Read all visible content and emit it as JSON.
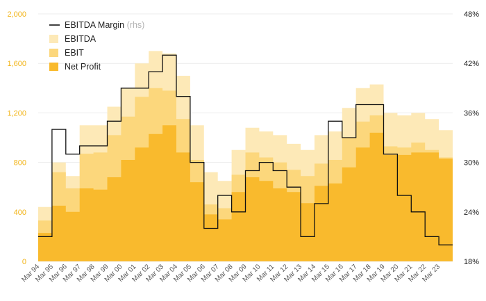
{
  "chart_data": {
    "type": "area",
    "title": "",
    "xlabel": "",
    "ylabel": "",
    "ylim": [
      0,
      2000
    ],
    "y2lim": [
      18,
      48
    ],
    "yticks": [
      "0",
      "400",
      "800",
      "1,200",
      "1,600",
      "2,000"
    ],
    "y2ticks": [
      "18%",
      "24%",
      "30%",
      "36%",
      "42%",
      "48%"
    ],
    "grid": true,
    "legend_position": "top-left",
    "colors": {
      "ebitda": "#fde9b7",
      "ebit": "#fcd77c",
      "net_profit": "#f9ba2d",
      "margin": "#111111",
      "left_axis": "#f2b417",
      "right_axis": "#222222"
    },
    "legend": {
      "margin_label": "EBITDA Margin",
      "margin_suffix": "(rhs)",
      "ebitda_label": "EBITDA",
      "ebit_label": "EBIT",
      "net_profit_label": "Net Profit"
    },
    "x": [
      "Mar 94",
      "Mar 95",
      "Mar 96",
      "Mar 97",
      "Mar 98",
      "Mar 99",
      "Mar 00",
      "Mar 01",
      "Mar 02",
      "Mar 03",
      "Mar 04",
      "Mar 05",
      "Mar 06",
      "Mar 07",
      "Mar 08",
      "Mar 09",
      "Mar 10",
      "Mar 11",
      "Mar 12",
      "Mar 13",
      "Mar 14",
      "Mar 15",
      "Mar 16",
      "Mar 17",
      "Mar 18",
      "Mar 19",
      "Mar 20",
      "Mar 21",
      "Mar 22",
      "Mar 23"
    ],
    "series": [
      {
        "name": "EBITDA",
        "values": [
          440,
          800,
          690,
          1100,
          1100,
          1250,
          1400,
          1600,
          1700,
          1680,
          1500,
          1100,
          720,
          650,
          900,
          1080,
          1050,
          1020,
          950,
          900,
          1020,
          1050,
          1240,
          1400,
          1430,
          1200,
          1180,
          1200,
          1150,
          1060
        ]
      },
      {
        "name": "EBIT",
        "values": [
          330,
          720,
          590,
          870,
          880,
          1020,
          1170,
          1330,
          1400,
          1380,
          1150,
          820,
          460,
          430,
          700,
          880,
          840,
          800,
          740,
          690,
          790,
          820,
          1000,
          1130,
          1180,
          930,
          920,
          960,
          900,
          840
        ]
      },
      {
        "name": "Net Profit",
        "values": [
          230,
          450,
          400,
          590,
          580,
          680,
          820,
          920,
          1030,
          1100,
          880,
          640,
          380,
          340,
          560,
          680,
          650,
          590,
          560,
          470,
          610,
          630,
          760,
          920,
          1040,
          860,
          860,
          880,
          880,
          830
        ]
      },
      {
        "name": "EBITDA Margin",
        "values": [
          21,
          34,
          31,
          32,
          32,
          35,
          39,
          39,
          41,
          43,
          38,
          30,
          22,
          26,
          24,
          29,
          30,
          29,
          27,
          21,
          25,
          35,
          33,
          37,
          37,
          31,
          26,
          24,
          21,
          20
        ]
      }
    ]
  }
}
